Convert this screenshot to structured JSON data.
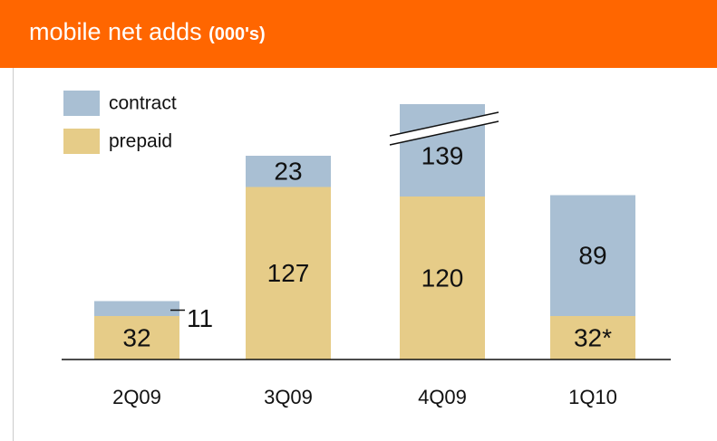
{
  "chart_data": {
    "type": "stacked-bar",
    "title": "mobile net adds",
    "unit": "(000's)",
    "categories": [
      "2Q09",
      "3Q09",
      "4Q09",
      "1Q10"
    ],
    "series": [
      {
        "name": "prepaid",
        "color": "#e6cc88",
        "values": [
          32,
          127,
          120,
          32
        ],
        "value_labels": [
          "32",
          "127",
          "120",
          "32*"
        ]
      },
      {
        "name": "contract",
        "color": "#a9bfd3",
        "values": [
          11,
          23,
          139,
          89
        ]
      }
    ],
    "ylim": [
      0,
      188
    ],
    "axis_break": true
  }
}
